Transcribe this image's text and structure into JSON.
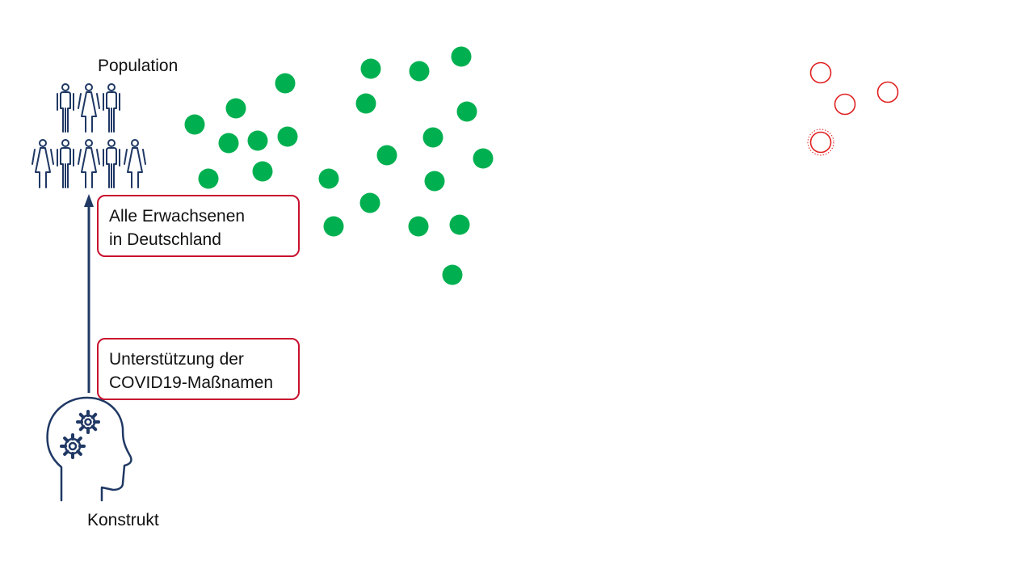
{
  "population": {
    "title": "Population",
    "figure_count": 8
  },
  "construct": {
    "title": "Konstrukt"
  },
  "callouts": {
    "population_definition": [
      "Alle Erwachsenen",
      "in Deutschland"
    ],
    "construct_definition": [
      "Unterstützung der",
      "COVID19-Maßnamen"
    ]
  },
  "colors": {
    "navy": "#1f3864",
    "callout_border": "#c8102e",
    "sample_dot": "#00b050",
    "outlier_ring": "#e02020"
  },
  "icons": {
    "population": "people-group-icon",
    "construct": "head-with-gears-icon"
  }
}
